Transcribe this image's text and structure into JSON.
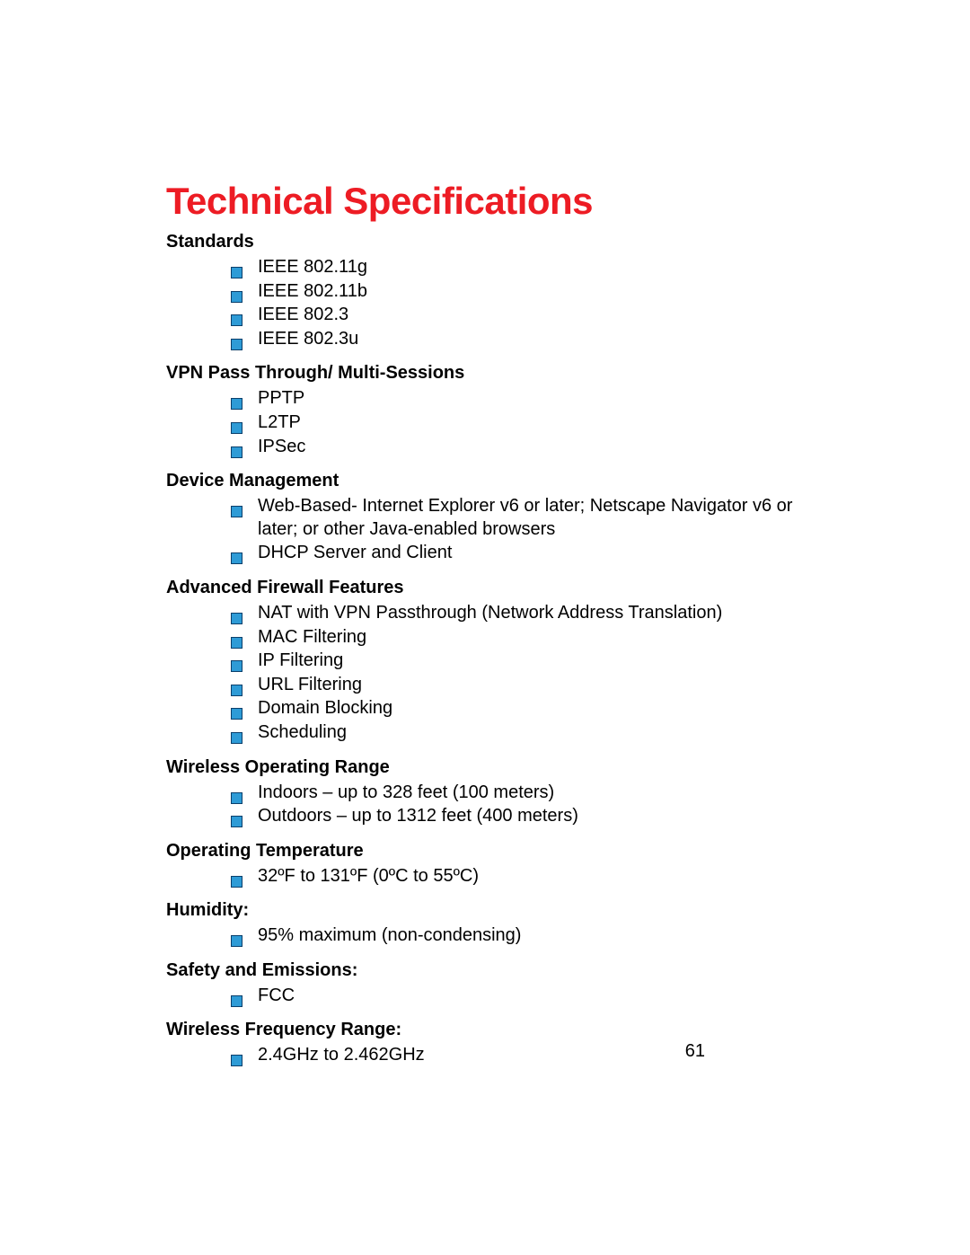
{
  "title": "Technical Specifications",
  "title_color": "#ed1c24",
  "bullet": {
    "fill": "#2e9bd6",
    "stroke": "#0a3f6b",
    "stroke_width": 1
  },
  "page_number": "61",
  "sections": [
    {
      "heading": "Standards",
      "items": [
        "IEEE 802.11g",
        "IEEE 802.11b",
        "IEEE 802.3",
        "IEEE 802.3u"
      ]
    },
    {
      "heading": "VPN Pass Through/ Multi-Sessions",
      "items": [
        "PPTP",
        "L2TP",
        "IPSec"
      ]
    },
    {
      "heading": "Device Management",
      "spaced": true,
      "items": [
        "Web-Based- Internet Explorer v6 or later; Netscape Navigator v6 or later; or other Java-enabled browsers",
        "DHCP Server and Client"
      ]
    },
    {
      "heading": "Advanced Firewall Features",
      "spaced": true,
      "items": [
        "NAT with VPN Passthrough (Network Address Translation)",
        "MAC Filtering",
        "IP Filtering",
        "URL Filtering",
        "Domain Blocking",
        "Scheduling"
      ]
    },
    {
      "heading": "Wireless Operating Range",
      "items": [
        "Indoors – up to 328 feet (100 meters)",
        "Outdoors – up to 1312 feet (400 meters)"
      ]
    },
    {
      "heading": "Operating Temperature",
      "items": [
        "32ºF to 131ºF (0ºC to 55ºC)"
      ]
    },
    {
      "heading": "Humidity:",
      "items": [
        "95% maximum (non-condensing)"
      ]
    },
    {
      "heading": "Safety and Emissions:",
      "items": [
        "FCC"
      ]
    },
    {
      "heading": "Wireless Frequency Range:",
      "items": [
        "2.4GHz to 2.462GHz"
      ]
    }
  ]
}
